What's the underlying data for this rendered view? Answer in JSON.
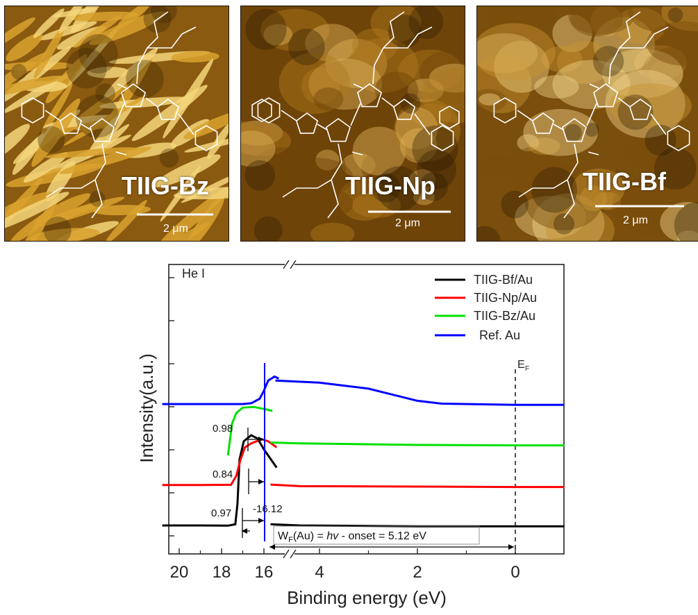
{
  "panels": [
    {
      "id": "bz",
      "label": "TIIG-Bz",
      "scale": "2 μm",
      "colors": [
        "#3a2404",
        "#8a5a10",
        "#d9a22e",
        "#f5d67a"
      ]
    },
    {
      "id": "np",
      "label": "TIIG-Np",
      "scale": "2 μm",
      "colors": [
        "#2b1a04",
        "#6f4408",
        "#b07a1c",
        "#e0b45a"
      ]
    },
    {
      "id": "bf",
      "label": "TIIG-Bf",
      "scale": "2 μm",
      "colors": [
        "#2a1a04",
        "#7a4e0c",
        "#c79230",
        "#f2d48a"
      ]
    }
  ],
  "chart_data": {
    "type": "line",
    "xlabel": "Binding energy (eV)",
    "ylabel": "Intensity(a.u.)",
    "corner_label": "He I",
    "fermi_label": "E",
    "fermi_sub": "F",
    "x_axis_break": true,
    "x_ticks_left": [
      20,
      18,
      16
    ],
    "x_ticks_right": [
      4,
      2,
      0
    ],
    "legend_position": "top-right",
    "series": [
      {
        "name": "TIIG-Bf/Au",
        "color": "#000000",
        "left": [
          [
            20.8,
            0.97
          ],
          [
            19.0,
            0.97
          ],
          [
            17.7,
            0.965
          ],
          [
            17.35,
            1.0
          ],
          [
            17.25,
            1.5
          ],
          [
            17.15,
            2.6
          ],
          [
            16.95,
            3.05
          ],
          [
            16.6,
            3.2
          ],
          [
            16.3,
            3.12
          ],
          [
            16.0,
            2.85
          ],
          [
            15.4,
            2.4
          ]
        ],
        "right": [
          [
            5.0,
            1.0
          ],
          [
            4.4,
            0.97
          ],
          [
            2.0,
            0.95
          ],
          [
            0.0,
            0.95
          ],
          [
            -1.0,
            0.95
          ]
        ]
      },
      {
        "name": "TIIG-Np/Au",
        "color": "#ff0000",
        "left": [
          [
            20.8,
            1.97
          ],
          [
            19.0,
            1.97
          ],
          [
            17.55,
            1.975
          ],
          [
            17.3,
            2.2
          ],
          [
            17.1,
            2.6
          ],
          [
            16.9,
            2.9
          ],
          [
            16.6,
            3.0
          ],
          [
            16.1,
            3.1
          ],
          [
            15.8,
            3.05
          ],
          [
            15.4,
            2.9
          ]
        ],
        "right": [
          [
            5.0,
            1.98
          ],
          [
            4.4,
            1.94
          ],
          [
            2.0,
            1.93
          ],
          [
            0.0,
            1.92
          ],
          [
            -1.0,
            1.92
          ]
        ]
      },
      {
        "name": "TIIG-Bz/Au",
        "color": "#00e000",
        "left": [
          [
            17.7,
            2.7
          ],
          [
            17.5,
            3.5
          ],
          [
            17.3,
            3.75
          ],
          [
            17.0,
            3.88
          ],
          [
            16.5,
            3.9
          ],
          [
            16.0,
            3.85
          ],
          [
            15.6,
            3.8
          ]
        ],
        "right": [
          [
            5.0,
            3.02
          ],
          [
            4.4,
            3.0
          ],
          [
            2.0,
            2.96
          ],
          [
            0.0,
            2.95
          ],
          [
            -1.0,
            2.95
          ]
        ]
      },
      {
        "name": "Ref. Au",
        "color": "#0000ff",
        "left": [
          [
            20.8,
            3.97
          ],
          [
            17.0,
            3.97
          ],
          [
            16.6,
            3.99
          ],
          [
            16.2,
            4.1
          ],
          [
            16.0,
            4.3
          ],
          [
            15.8,
            4.55
          ],
          [
            15.5,
            4.65
          ],
          [
            15.3,
            4.6
          ]
        ],
        "right": [
          [
            4.9,
            4.55
          ],
          [
            4.0,
            4.5
          ],
          [
            3.0,
            4.35
          ],
          [
            2.5,
            4.2
          ],
          [
            2.0,
            4.05
          ],
          [
            1.5,
            3.98
          ],
          [
            0.0,
            3.95
          ],
          [
            -1.0,
            3.95
          ]
        ]
      }
    ],
    "annotations": [
      {
        "text": "0.98"
      },
      {
        "text": "0.84"
      },
      {
        "text": "0.97"
      },
      {
        "text": "-16.12"
      }
    ],
    "workfunction_label_prefix": "W",
    "workfunction_label_sub": "F",
    "workfunction_label_mid": "(Au) = ",
    "workfunction_label_hv": "hv",
    "workfunction_label_suffix": " - onset = 5.12 eV"
  }
}
